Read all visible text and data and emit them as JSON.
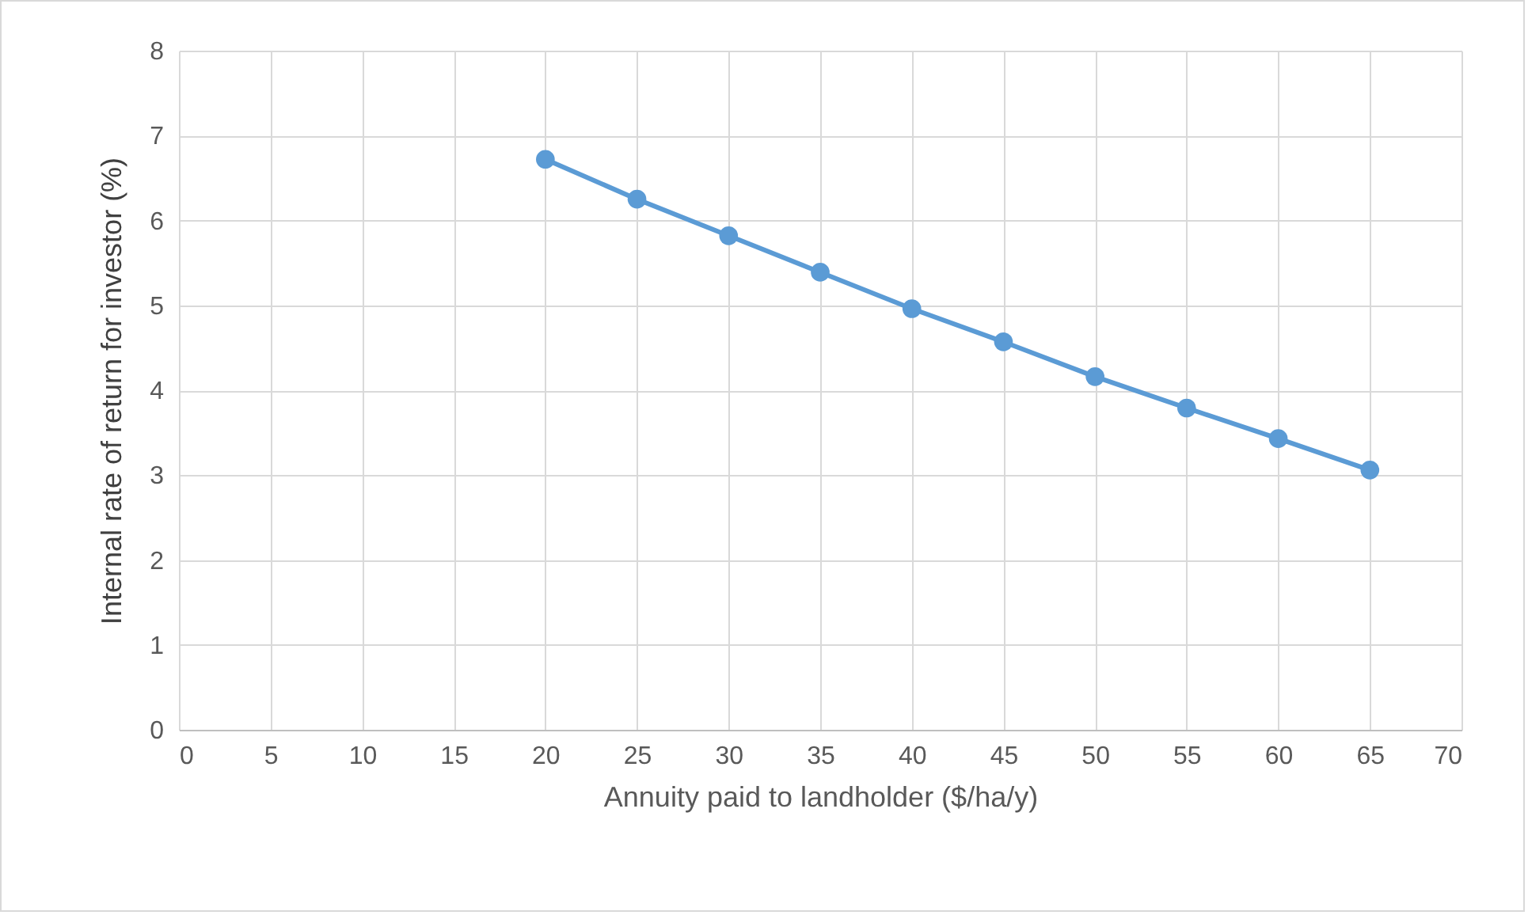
{
  "chart_data": {
    "type": "line",
    "xlabel": "Annuity paid to landholder ($/ha/y)",
    "ylabel": "Internal rate of return for investor (%)",
    "x": [
      20,
      25,
      30,
      35,
      40,
      45,
      50,
      55,
      60,
      65
    ],
    "series": [
      {
        "color": "#5b9bd5",
        "values": [
          6.72,
          6.25,
          5.82,
          5.39,
          4.96,
          4.57,
          4.16,
          3.79,
          3.43,
          3.06
        ]
      }
    ],
    "xlim": [
      0,
      70
    ],
    "xticks": [
      0,
      5,
      10,
      15,
      20,
      25,
      30,
      35,
      40,
      45,
      50,
      55,
      60,
      65,
      70
    ],
    "ylim": [
      0,
      8
    ],
    "yticks": [
      0,
      1,
      2,
      3,
      4,
      5,
      6,
      7,
      8
    ],
    "grid": true,
    "marker": "circle",
    "line_style": "solid",
    "legend": false
  }
}
